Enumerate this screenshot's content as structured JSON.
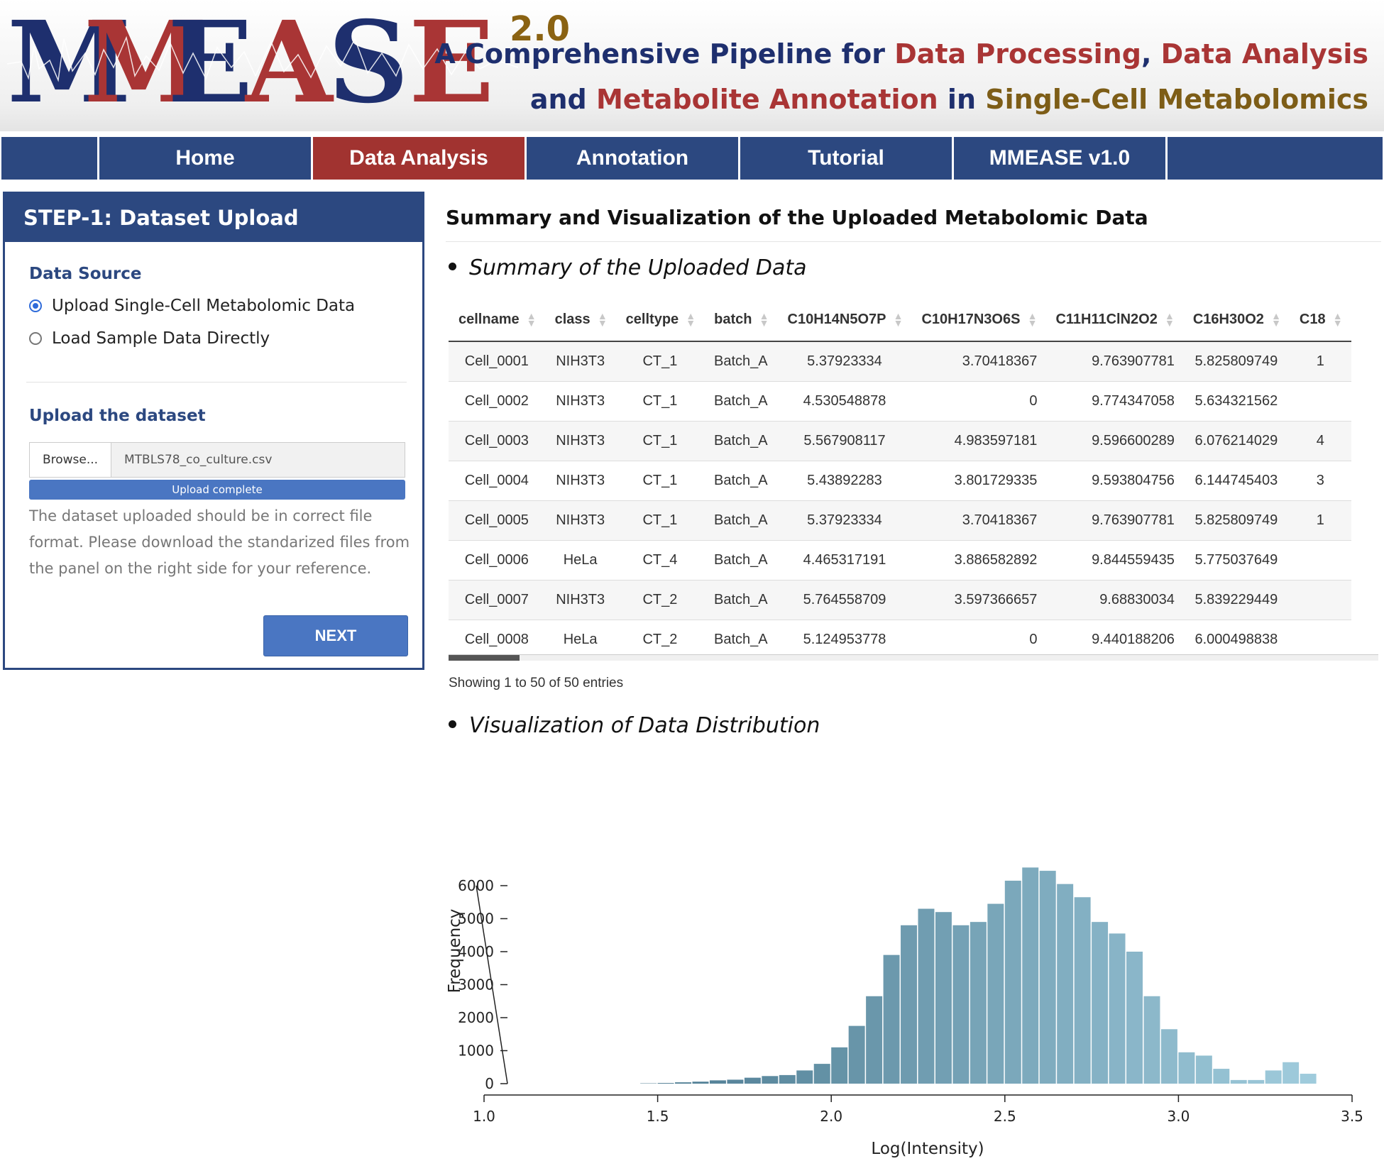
{
  "header": {
    "logo": {
      "letters": [
        "M",
        "M",
        "E",
        "A",
        "S",
        "E"
      ],
      "colors": [
        "#1e2f6e",
        "#a93535",
        "#1e2f6e",
        "#a93535",
        "#1e2f6e",
        "#a93535"
      ],
      "version": "2.0"
    },
    "tagline": {
      "line1": [
        {
          "text": "A Comprehensive Pipeline for ",
          "color": "navy"
        },
        {
          "text": "Data Processing",
          "color": "red"
        },
        {
          "text": ", ",
          "color": "navy"
        },
        {
          "text": "Data Analysis",
          "color": "red"
        }
      ],
      "line2": [
        {
          "text": "and ",
          "color": "navy"
        },
        {
          "text": "Metabolite Annotation",
          "color": "red"
        },
        {
          "text": " in ",
          "color": "navy"
        },
        {
          "text": "Single-Cell Metabolomics",
          "color": "gold"
        }
      ]
    }
  },
  "nav": {
    "items": [
      {
        "label": "Home",
        "active": false
      },
      {
        "label": "Data Analysis",
        "active": true
      },
      {
        "label": "Annotation",
        "active": false
      },
      {
        "label": "Tutorial",
        "active": false
      },
      {
        "label": "MMEASE v1.0",
        "active": false
      }
    ]
  },
  "panel": {
    "title": "STEP-1: Dataset Upload",
    "data_source_label": "Data Source",
    "options": [
      {
        "label": "Upload Single-Cell Metabolomic Data",
        "selected": true
      },
      {
        "label": "Load Sample Data Directly",
        "selected": false
      }
    ],
    "upload_label": "Upload the dataset",
    "browse_label": "Browse...",
    "file_name": "MTBLS78_co_culture.csv",
    "progress_text": "Upload complete",
    "progress": 1.0,
    "help_text": "The dataset uploaded should be in correct file format. Please download the standarized files from the panel on the right side for your reference.",
    "next_label": "NEXT"
  },
  "main": {
    "title": "Summary and Visualization of the Uploaded Metabolomic Data",
    "summary_heading": "Summary of the Uploaded Data",
    "table": {
      "columns": [
        "cellname",
        "class",
        "celltype",
        "batch",
        "C10H14N5O7P",
        "C10H17N3O6S",
        "C11H11ClN2O2",
        "C16H30O2",
        "C18"
      ],
      "rows": [
        [
          "Cell_0001",
          "NIH3T3",
          "CT_1",
          "Batch_A",
          "5.37923334",
          "3.70418367",
          "9.763907781",
          "5.825809749",
          "1"
        ],
        [
          "Cell_0002",
          "NIH3T3",
          "CT_1",
          "Batch_A",
          "4.530548878",
          "0",
          "9.774347058",
          "5.634321562",
          ""
        ],
        [
          "Cell_0003",
          "NIH3T3",
          "CT_1",
          "Batch_A",
          "5.567908117",
          "4.983597181",
          "9.596600289",
          "6.076214029",
          "4"
        ],
        [
          "Cell_0004",
          "NIH3T3",
          "CT_1",
          "Batch_A",
          "5.43892283",
          "3.801729335",
          "9.593804756",
          "6.144745403",
          "3"
        ],
        [
          "Cell_0005",
          "NIH3T3",
          "CT_1",
          "Batch_A",
          "5.37923334",
          "3.70418367",
          "9.763907781",
          "5.825809749",
          "1"
        ],
        [
          "Cell_0006",
          "HeLa",
          "CT_4",
          "Batch_A",
          "4.465317191",
          "3.886582892",
          "9.844559435",
          "5.775037649",
          ""
        ],
        [
          "Cell_0007",
          "NIH3T3",
          "CT_2",
          "Batch_A",
          "5.764558709",
          "3.597366657",
          "9.68830034",
          "5.839229449",
          ""
        ],
        [
          "Cell_0008",
          "HeLa",
          "CT_2",
          "Batch_A",
          "5.124953778",
          "0",
          "9.440188206",
          "6.000498838",
          ""
        ]
      ],
      "info": "Showing 1 to 50 of 50 entries"
    },
    "viz_heading": "Visualization of Data Distribution"
  },
  "chart_data": {
    "type": "bar",
    "subtype": "histogram",
    "title": "",
    "xlabel": "Log(Intensity)",
    "ylabel": "Frequency",
    "xlim": [
      1.0,
      3.5
    ],
    "ylim": [
      0,
      6000
    ],
    "xticks": [
      "1.0",
      "1.5",
      "2.0",
      "2.5",
      "3.0",
      "3.5"
    ],
    "yticks": [
      "0",
      "1000",
      "2000",
      "3000",
      "4000",
      "5000",
      "6000"
    ],
    "grid": false,
    "bin_width": 0.05,
    "bin_start": 1.45,
    "values": [
      10,
      20,
      40,
      60,
      100,
      120,
      180,
      230,
      260,
      400,
      600,
      1100,
      1750,
      2650,
      3900,
      4800,
      5300,
      5200,
      4800,
      4900,
      5450,
      6150,
      6550,
      6450,
      6050,
      5650,
      4900,
      4550,
      4000,
      2650,
      1650,
      950,
      850,
      450,
      110,
      110,
      400,
      650,
      300
    ],
    "colors": {
      "low": "#4e7c92",
      "high": "#9fcbdc"
    }
  }
}
